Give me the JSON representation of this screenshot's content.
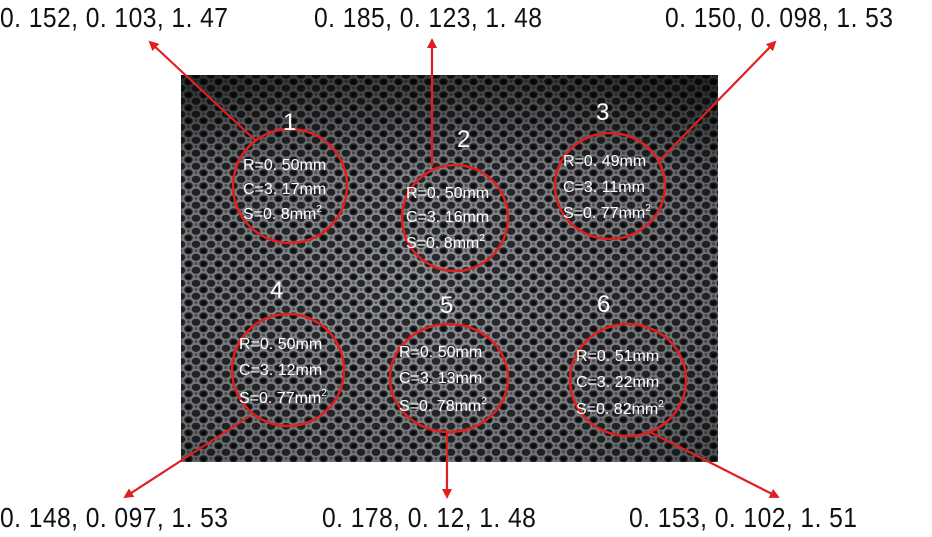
{
  "colors": {
    "accent": "#e02020",
    "label_text": "#ffffff",
    "outer_text": "#111111"
  },
  "regions": [
    {
      "id": "1",
      "R": "R=0. 50mm",
      "C": "C=3. 17mm",
      "S": "S=0. 8mm",
      "S_exp": "2",
      "outer": "0. 152, 0. 103, 1. 47"
    },
    {
      "id": "2",
      "R": "R=0. 50mm",
      "C": "C=3. 16mm",
      "S": "S=0. 8mm",
      "S_exp": "2",
      "outer": "0. 185, 0. 123, 1. 48"
    },
    {
      "id": "3",
      "R": "R=0. 49mm",
      "C": "C=3. 11mm",
      "S": "S=0. 77mm",
      "S_exp": "2",
      "outer": "0. 150, 0. 098, 1. 53"
    },
    {
      "id": "4",
      "R": "R=0. 50mm",
      "C": "C=3. 12mm",
      "S": "S=0. 77mm",
      "S_exp": "2",
      "outer": "0. 148, 0. 097, 1. 53"
    },
    {
      "id": "5",
      "R": "R=0. 50mm",
      "C": "C=3. 13mm",
      "S": "S=0. 78mm",
      "S_exp": "2",
      "outer": "0. 178, 0. 12, 1. 48"
    },
    {
      "id": "6",
      "R": "R=0. 51mm",
      "C": "C=3. 22mm",
      "S": "S=0. 82mm",
      "S_exp": "2",
      "outer": "0. 153, 0. 102, 1. 51"
    }
  ]
}
